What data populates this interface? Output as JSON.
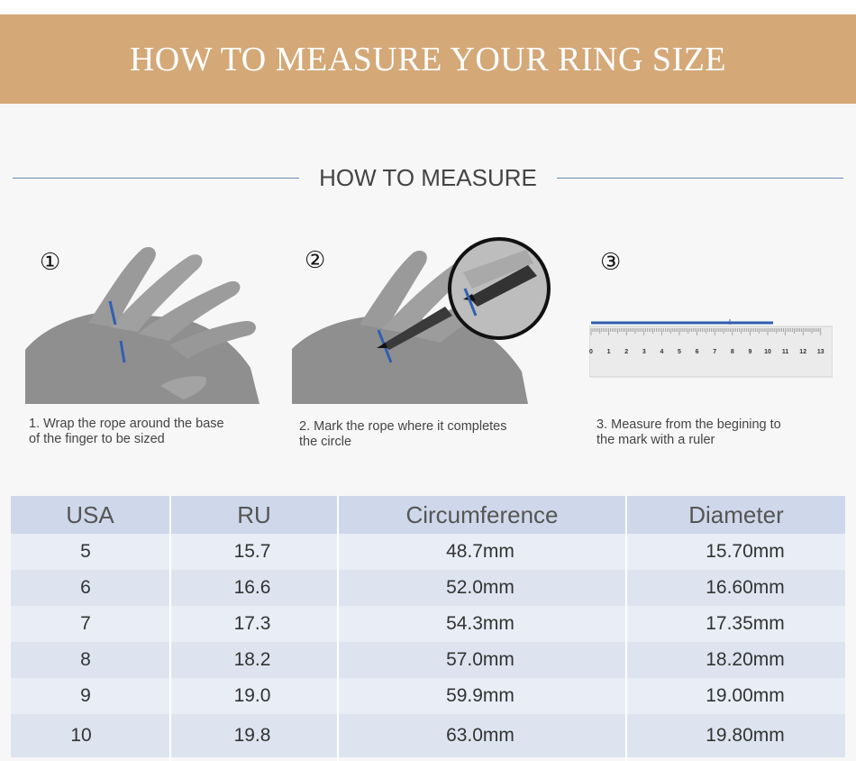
{
  "banner": {
    "title": "HOW TO MEASURE YOUR RING SIZE",
    "color": "#d4a877"
  },
  "section": {
    "title": "HOW TO MEASURE"
  },
  "steps": [
    {
      "number": "①",
      "caption_line1": "1. Wrap the rope around the base",
      "caption_line2": "of the finger to be sized"
    },
    {
      "number": "②",
      "caption_line1": "2. Mark the rope where it completes",
      "caption_line2": "the circle"
    },
    {
      "number": "③",
      "caption_line1": "3. Measure from the begining to",
      "caption_line2": "the mark with a ruler"
    }
  ],
  "ruler": {
    "labels": [
      "0",
      "1",
      "2",
      "3",
      "4",
      "5",
      "6",
      "7",
      "8",
      "9",
      "10",
      "11",
      "12",
      "13"
    ]
  },
  "table": {
    "headers": [
      "USA",
      "RU",
      "Circumference",
      "Diameter"
    ],
    "rows": [
      [
        "5",
        "15.7",
        "48.7mm",
        "15.70mm"
      ],
      [
        "6",
        "16.6",
        "52.0mm",
        "16.60mm"
      ],
      [
        "7",
        "17.3",
        "54.3mm",
        "17.35mm"
      ],
      [
        "8",
        "18.2",
        "57.0mm",
        "18.20mm"
      ],
      [
        "9",
        "19.0",
        "59.9mm",
        "19.00mm"
      ],
      [
        "10",
        "19.8",
        "63.0mm",
        "19.80mm"
      ]
    ],
    "colors": {
      "header": "#cfd8ea",
      "odd": "#e8edf6",
      "even": "#dde4f0"
    }
  },
  "accent_blue": "#2f5fb0"
}
